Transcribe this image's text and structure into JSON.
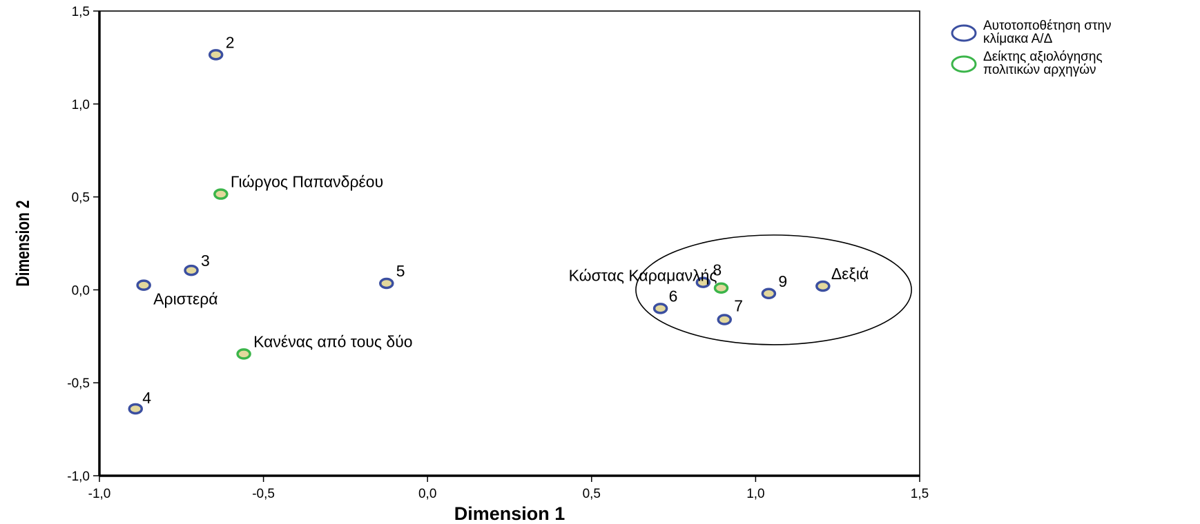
{
  "chart_data": {
    "type": "scatter",
    "xlabel": "Dimension 1",
    "ylabel": "Dimension 2",
    "xlim": [
      -1.0,
      1.5
    ],
    "ylim": [
      -1.0,
      1.5
    ],
    "x_ticks": [
      "-1,0",
      "-0,5",
      "0,0",
      "0,5",
      "1,0",
      "1,5"
    ],
    "x_tick_values": [
      -1.0,
      -0.5,
      0.0,
      0.5,
      1.0,
      1.5
    ],
    "y_ticks": [
      "-1,0",
      "-0,5",
      "0,0",
      "0,5",
      "1,0",
      "1,5"
    ],
    "y_tick_values": [
      -1.0,
      -0.5,
      0.0,
      0.5,
      1.0,
      1.5
    ],
    "grid": false,
    "legend_position": "right",
    "series": [
      {
        "name": "Αυτοτοποθέτηση στην κλίμακα Α/Δ",
        "legend_lines": [
          "Αυτοτοποθέτηση στην",
          "κλίμακα Α/Δ"
        ],
        "color": "#3b4fa0",
        "fill": "#e3d89c",
        "points": [
          {
            "label": "2",
            "x": -0.645,
            "y": 1.265
          },
          {
            "label": "3",
            "x": -0.72,
            "y": 0.105
          },
          {
            "label": "Αριστερά",
            "x": -0.865,
            "y": 0.025
          },
          {
            "label": "5",
            "x": -0.125,
            "y": 0.035
          },
          {
            "label": "4",
            "x": -0.89,
            "y": -0.64
          },
          {
            "label": "8",
            "x": 0.84,
            "y": 0.04
          },
          {
            "label": "6",
            "x": 0.71,
            "y": -0.1
          },
          {
            "label": "7",
            "x": 0.905,
            "y": -0.16
          },
          {
            "label": "9",
            "x": 1.04,
            "y": -0.02
          },
          {
            "label": "Δεξιά",
            "x": 1.205,
            "y": 0.02
          }
        ]
      },
      {
        "name": "Δείκτης αξιολόγησης πολιτικών αρχηγών",
        "legend_lines": [
          "Δείκτης αξιολόγησης",
          "πολιτικών αρχηγών"
        ],
        "color": "#3bb54a",
        "fill": "#e3d89c",
        "points": [
          {
            "label": "Γιώργος Παπανδρέου",
            "x": -0.63,
            "y": 0.515
          },
          {
            "label": "Κανένας από τους δύο",
            "x": -0.56,
            "y": -0.345
          },
          {
            "label": "Κώστας Καραμανλής",
            "x": 0.895,
            "y": 0.01
          }
        ]
      }
    ],
    "annotations": [
      {
        "type": "ellipse",
        "cx": 1.055,
        "cy": 0.0,
        "rx": 0.42,
        "ry": 0.295
      }
    ]
  }
}
